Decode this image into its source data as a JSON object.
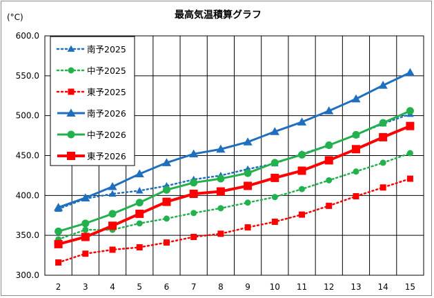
{
  "chart_data": {
    "type": "line",
    "title": "最高気温積算グラフ",
    "ylabel": "(°C)",
    "xlabel": "",
    "x": [
      2,
      3,
      4,
      5,
      6,
      7,
      8,
      9,
      10,
      11,
      12,
      13,
      14,
      15
    ],
    "xlim": [
      1.5,
      15.5
    ],
    "ylim": [
      300,
      600
    ],
    "yticks": [
      "300.0",
      "350.0",
      "400.0",
      "450.0",
      "500.0",
      "550.0",
      "600.0"
    ],
    "grid": true,
    "legend_position": "top-left",
    "series": [
      {
        "name": "南予2025",
        "color": "#1f6fbf",
        "marker": "triangle",
        "line": "dotted",
        "values": [
          383,
          396,
          402,
          406,
          412,
          420,
          425,
          433,
          440,
          452,
          463,
          476,
          490,
          502
        ]
      },
      {
        "name": "中予2025",
        "color": "#22b14c",
        "marker": "circle",
        "line": "dotted",
        "values": [
          345,
          357,
          357,
          365,
          371,
          378,
          384,
          391,
          398,
          408,
          419,
          430,
          441,
          453
        ]
      },
      {
        "name": "東予2025",
        "color": "#ff0000",
        "marker": "square",
        "line": "dotted",
        "values": [
          316,
          327,
          332,
          335,
          341,
          348,
          352,
          360,
          367,
          376,
          387,
          399,
          410,
          421
        ]
      },
      {
        "name": "南予2026",
        "color": "#1f6fbf",
        "marker": "triangle",
        "line": "solid",
        "values": [
          385,
          397,
          411,
          427,
          441,
          452,
          458,
          467,
          480,
          492,
          506,
          521,
          538,
          554
        ]
      },
      {
        "name": "中予2026",
        "color": "#22b14c",
        "marker": "circle",
        "line": "solid",
        "values": [
          355,
          365,
          377,
          391,
          407,
          416,
          421,
          428,
          441,
          451,
          463,
          476,
          491,
          506
        ]
      },
      {
        "name": "東予2026",
        "color": "#ff0000",
        "marker": "square",
        "line": "solid",
        "values": [
          339,
          348,
          362,
          377,
          392,
          402,
          405,
          412,
          422,
          431,
          444,
          458,
          473,
          487
        ]
      }
    ]
  }
}
